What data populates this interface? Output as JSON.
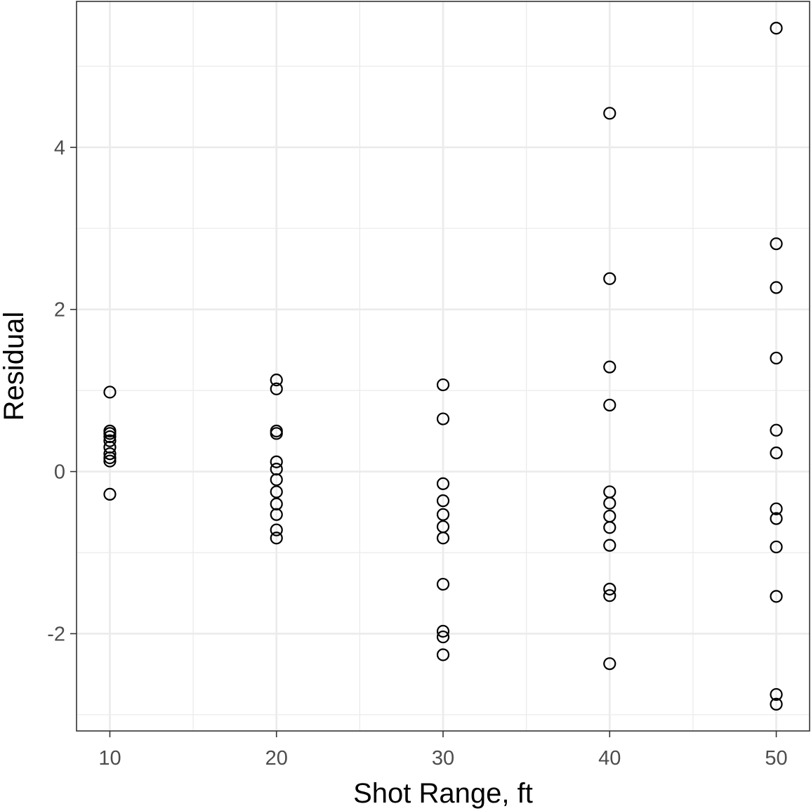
{
  "chart_data": {
    "type": "scatter",
    "title": "",
    "xlabel": "Shot Range, ft",
    "ylabel": "Residual",
    "xlim": [
      8,
      52
    ],
    "ylim": [
      -3.2,
      5.8
    ],
    "x_ticks": [
      10,
      20,
      30,
      40,
      50
    ],
    "x_tick_labels": [
      "10",
      "20",
      "30",
      "40",
      "50"
    ],
    "y_ticks": [
      -2,
      0,
      2,
      4
    ],
    "y_tick_labels": [
      "-2",
      "0",
      "2",
      "4"
    ],
    "x_minor_gridlines": [
      15,
      25,
      35,
      45
    ],
    "y_minor_gridlines": [
      -3,
      -1,
      1,
      3,
      5
    ],
    "grid": true,
    "theme": "black-and-white",
    "marker": "open-circle",
    "marker_color": "#000000",
    "points": [
      {
        "x": 10,
        "y": 0.98
      },
      {
        "x": 10,
        "y": 0.5
      },
      {
        "x": 10,
        "y": 0.47
      },
      {
        "x": 10,
        "y": 0.43
      },
      {
        "x": 10,
        "y": 0.38
      },
      {
        "x": 10,
        "y": 0.3
      },
      {
        "x": 10,
        "y": 0.22
      },
      {
        "x": 10,
        "y": 0.17
      },
      {
        "x": 10,
        "y": 0.13
      },
      {
        "x": 10,
        "y": -0.28
      },
      {
        "x": 20,
        "y": 1.13
      },
      {
        "x": 20,
        "y": 1.02
      },
      {
        "x": 20,
        "y": 0.5
      },
      {
        "x": 20,
        "y": 0.47
      },
      {
        "x": 20,
        "y": 0.12
      },
      {
        "x": 20,
        "y": 0.03
      },
      {
        "x": 20,
        "y": -0.1
      },
      {
        "x": 20,
        "y": -0.25
      },
      {
        "x": 20,
        "y": -0.4
      },
      {
        "x": 20,
        "y": -0.53
      },
      {
        "x": 20,
        "y": -0.72
      },
      {
        "x": 20,
        "y": -0.82
      },
      {
        "x": 30,
        "y": 1.07
      },
      {
        "x": 30,
        "y": 0.65
      },
      {
        "x": 30,
        "y": -0.15
      },
      {
        "x": 30,
        "y": -0.36
      },
      {
        "x": 30,
        "y": -0.53
      },
      {
        "x": 30,
        "y": -0.68
      },
      {
        "x": 30,
        "y": -0.82
      },
      {
        "x": 30,
        "y": -1.39
      },
      {
        "x": 30,
        "y": -1.97
      },
      {
        "x": 30,
        "y": -2.04
      },
      {
        "x": 30,
        "y": -2.26
      },
      {
        "x": 40,
        "y": 4.42
      },
      {
        "x": 40,
        "y": 2.38
      },
      {
        "x": 40,
        "y": 1.29
      },
      {
        "x": 40,
        "y": 0.82
      },
      {
        "x": 40,
        "y": -0.25
      },
      {
        "x": 40,
        "y": -0.39
      },
      {
        "x": 40,
        "y": -0.55
      },
      {
        "x": 40,
        "y": -0.69
      },
      {
        "x": 40,
        "y": -0.91
      },
      {
        "x": 40,
        "y": -1.45
      },
      {
        "x": 40,
        "y": -1.53
      },
      {
        "x": 40,
        "y": -2.37
      },
      {
        "x": 50,
        "y": 5.47
      },
      {
        "x": 50,
        "y": 2.81
      },
      {
        "x": 50,
        "y": 2.27
      },
      {
        "x": 50,
        "y": 1.4
      },
      {
        "x": 50,
        "y": 0.51
      },
      {
        "x": 50,
        "y": 0.23
      },
      {
        "x": 50,
        "y": -0.46
      },
      {
        "x": 50,
        "y": -0.58
      },
      {
        "x": 50,
        "y": -0.93
      },
      {
        "x": 50,
        "y": -1.54
      },
      {
        "x": 50,
        "y": -2.75
      },
      {
        "x": 50,
        "y": -2.87
      }
    ]
  }
}
